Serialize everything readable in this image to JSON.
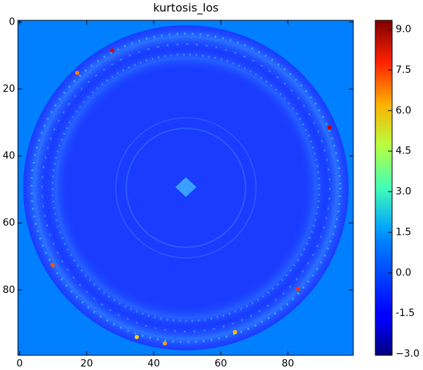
{
  "chart_data": {
    "type": "heatmap",
    "title": "kurtosis_los",
    "colormap": "jet",
    "xlim": [
      -0.5,
      99.5
    ],
    "xticks": [
      0,
      20,
      40,
      60,
      80
    ],
    "ylim": [
      -0.5,
      99.5
    ],
    "yticks": [
      0,
      20,
      40,
      60,
      80
    ],
    "clim": [
      -3.05,
      9.34
    ],
    "cticks": [
      {
        "value": -3.0,
        "label": "−3.0"
      },
      -1.5,
      {
        "value": 0.0,
        "label": "0.0"
      },
      1.5,
      {
        "value": 3.0,
        "label": "3.0"
      },
      4.5,
      {
        "value": 6.0,
        "label": "6.0"
      },
      7.5,
      {
        "value": 9.0,
        "label": "9.0"
      }
    ]
  }
}
